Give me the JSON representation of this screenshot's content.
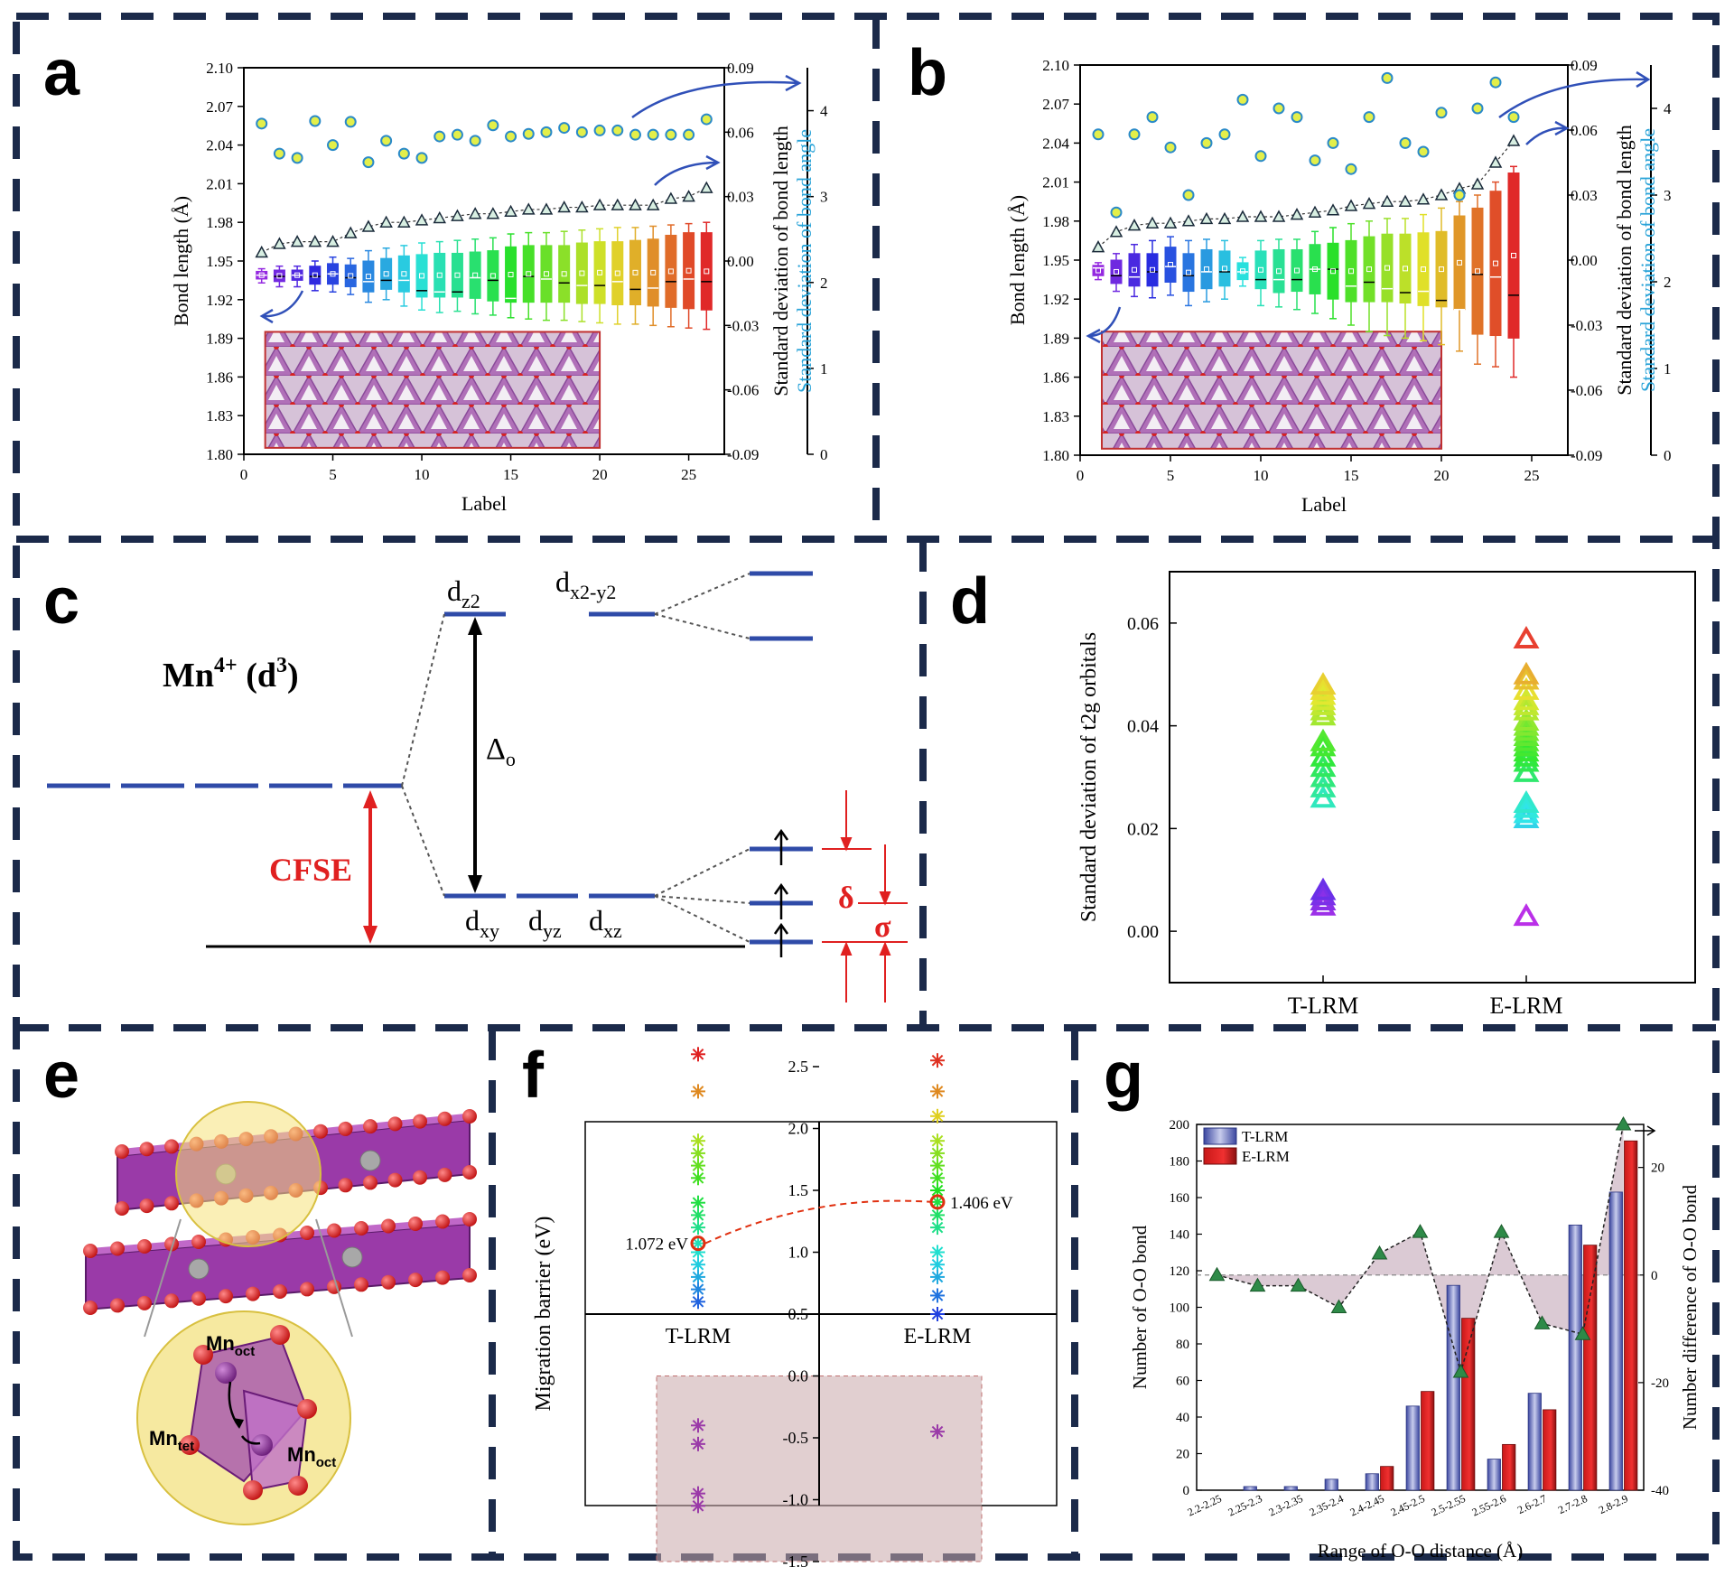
{
  "panel_labels": {
    "a": "a",
    "b": "b",
    "c": "c",
    "d": "d",
    "e": "e",
    "f": "f",
    "g": "g"
  },
  "colors": {
    "frame": "#1b2a4a",
    "blue_line": "#2f4ba8",
    "cfse_red": "#e02020",
    "angle_axis": "#29a3d8"
  },
  "panels_ab": {
    "xlabel": "Label",
    "ylabel_left": "Bond length (Å)",
    "ylabel_right1": "Standard deviation of bond length",
    "ylabel_right2": "Standard deviation of bond angle",
    "left_ticks": [
      "2.10",
      "2.07",
      "2.04",
      "2.01",
      "1.98",
      "1.95",
      "1.92",
      "1.89",
      "1.86",
      "1.83",
      "1.80"
    ],
    "right1_ticks": [
      "0.09",
      "0.06",
      "0.03",
      "0.00",
      "-0.03",
      "-0.06",
      "-0.09"
    ],
    "right2_ticks": [
      "4",
      "3",
      "2",
      "1",
      "0"
    ],
    "x_ticks": [
      "0",
      "5",
      "10",
      "15",
      "20",
      "25"
    ]
  },
  "chart_data": [
    {
      "id": "a",
      "type": "scatter",
      "title": "",
      "xlabel": "Label",
      "ylabel": "Bond length (Å)",
      "xlim": [
        0,
        27
      ],
      "ylim": [
        1.8,
        2.1
      ],
      "series": [
        {
          "name": "Std. dev. of bond angle (circles)",
          "axis": "right2",
          "ylim": [
            0,
            4.5
          ],
          "x": [
            1,
            2,
            3,
            4,
            5,
            6,
            7,
            8,
            9,
            10,
            11,
            12,
            13,
            14,
            15,
            16,
            17,
            18,
            19,
            20,
            21,
            22,
            23,
            24,
            25,
            26
          ],
          "values": [
            3.85,
            3.5,
            3.45,
            3.88,
            3.6,
            3.87,
            3.4,
            3.65,
            3.5,
            3.45,
            3.7,
            3.72,
            3.65,
            3.83,
            3.7,
            3.73,
            3.75,
            3.8,
            3.75,
            3.77,
            3.77,
            3.72,
            3.72,
            3.72,
            3.72,
            3.9
          ]
        },
        {
          "name": "Std. dev. of bond length (triangles)",
          "axis": "right1",
          "ylim": [
            -0.09,
            0.09
          ],
          "x": [
            1,
            2,
            3,
            4,
            5,
            6,
            7,
            8,
            9,
            10,
            11,
            12,
            13,
            14,
            15,
            16,
            17,
            18,
            19,
            20,
            21,
            22,
            23,
            24,
            25,
            26
          ],
          "values": [
            0.004,
            0.008,
            0.009,
            0.009,
            0.009,
            0.013,
            0.016,
            0.018,
            0.018,
            0.019,
            0.02,
            0.021,
            0.022,
            0.022,
            0.023,
            0.024,
            0.024,
            0.025,
            0.025,
            0.026,
            0.026,
            0.026,
            0.026,
            0.029,
            0.03,
            0.034
          ]
        },
        {
          "name": "Bond length boxes",
          "axis": "left",
          "type": "box",
          "x": [
            1,
            2,
            3,
            4,
            5,
            6,
            7,
            8,
            9,
            10,
            11,
            12,
            13,
            14,
            15,
            16,
            17,
            18,
            19,
            20,
            21,
            22,
            23,
            24,
            25,
            26
          ],
          "q1": [
            1.936,
            1.934,
            1.935,
            1.932,
            1.932,
            1.93,
            1.926,
            1.928,
            1.926,
            1.922,
            1.922,
            1.922,
            1.921,
            1.919,
            1.918,
            1.918,
            1.918,
            1.918,
            1.917,
            1.917,
            1.916,
            1.916,
            1.915,
            1.914,
            1.913,
            1.912
          ],
          "q3": [
            1.942,
            1.943,
            1.943,
            1.946,
            1.948,
            1.947,
            1.95,
            1.952,
            1.954,
            1.955,
            1.956,
            1.956,
            1.957,
            1.958,
            1.961,
            1.962,
            1.962,
            1.962,
            1.964,
            1.965,
            1.965,
            1.966,
            1.967,
            1.97,
            1.972,
            1.972
          ],
          "lo": [
            1.933,
            1.93,
            1.93,
            1.927,
            1.926,
            1.924,
            1.918,
            1.92,
            1.915,
            1.912,
            1.91,
            1.911,
            1.909,
            1.908,
            1.906,
            1.905,
            1.904,
            1.904,
            1.903,
            1.902,
            1.901,
            1.901,
            1.9,
            1.899,
            1.898,
            1.897
          ],
          "hi": [
            1.944,
            1.946,
            1.946,
            1.95,
            1.953,
            1.952,
            1.958,
            1.96,
            1.962,
            1.964,
            1.965,
            1.966,
            1.967,
            1.968,
            1.971,
            1.972,
            1.972,
            1.973,
            1.974,
            1.975,
            1.976,
            1.976,
            1.977,
            1.978,
            1.979,
            1.98
          ],
          "median": [
            1.939,
            1.938,
            1.939,
            1.938,
            1.94,
            1.937,
            1.934,
            1.935,
            1.935,
            1.927,
            1.926,
            1.926,
            1.937,
            1.935,
            1.921,
            1.938,
            1.936,
            1.933,
            1.931,
            1.931,
            1.934,
            1.928,
            1.929,
            1.934,
            1.936,
            1.934
          ]
        }
      ]
    },
    {
      "id": "b",
      "type": "scatter",
      "title": "",
      "xlabel": "Label",
      "ylabel": "Bond length (Å)",
      "xlim": [
        0,
        27
      ],
      "ylim": [
        1.8,
        2.1
      ],
      "series": [
        {
          "name": "Std. dev. of bond angle (circles)",
          "axis": "right2",
          "ylim": [
            0,
            4.5
          ],
          "x": [
            1,
            2,
            3,
            4,
            5,
            6,
            7,
            8,
            9,
            10,
            11,
            12,
            13,
            14,
            15,
            16,
            17,
            18,
            19,
            20,
            21,
            22,
            23,
            24
          ],
          "values": [
            3.7,
            2.8,
            3.7,
            3.9,
            3.55,
            3.0,
            3.6,
            3.7,
            4.1,
            3.45,
            4.0,
            3.9,
            3.4,
            3.6,
            3.3,
            3.9,
            4.35,
            3.6,
            3.5,
            3.95,
            3.0,
            4.0,
            4.3,
            3.9
          ]
        },
        {
          "name": "Std. dev. of bond length (triangles)",
          "axis": "right1",
          "ylim": [
            -0.09,
            0.09
          ],
          "x": [
            1,
            2,
            3,
            4,
            5,
            6,
            7,
            8,
            9,
            10,
            11,
            12,
            13,
            14,
            15,
            16,
            17,
            18,
            19,
            20,
            21,
            22,
            23,
            24
          ],
          "values": [
            0.006,
            0.013,
            0.016,
            0.017,
            0.017,
            0.018,
            0.019,
            0.019,
            0.02,
            0.02,
            0.02,
            0.021,
            0.022,
            0.023,
            0.025,
            0.026,
            0.027,
            0.027,
            0.028,
            0.03,
            0.033,
            0.035,
            0.045,
            0.055
          ]
        },
        {
          "name": "Bond length boxes",
          "axis": "left",
          "type": "box",
          "x": [
            1,
            2,
            3,
            4,
            5,
            6,
            7,
            8,
            9,
            10,
            11,
            12,
            13,
            14,
            15,
            16,
            17,
            18,
            19,
            20,
            21,
            22,
            23,
            24
          ],
          "q1": [
            1.938,
            1.932,
            1.93,
            1.93,
            1.933,
            1.926,
            1.928,
            1.93,
            1.935,
            1.928,
            1.925,
            1.926,
            1.924,
            1.92,
            1.918,
            1.918,
            1.918,
            1.917,
            1.915,
            1.914,
            1.912,
            1.893,
            1.892,
            1.89
          ],
          "q3": [
            1.946,
            1.95,
            1.955,
            1.955,
            1.96,
            1.955,
            1.958,
            1.957,
            1.948,
            1.957,
            1.958,
            1.958,
            1.962,
            1.963,
            1.965,
            1.968,
            1.97,
            1.97,
            1.971,
            1.972,
            1.984,
            1.99,
            2.003,
            2.017
          ],
          "lo": [
            1.935,
            1.926,
            1.922,
            1.921,
            1.923,
            1.915,
            1.918,
            1.92,
            1.93,
            1.915,
            1.914,
            1.912,
            1.909,
            1.905,
            1.9,
            1.895,
            1.892,
            1.89,
            1.888,
            1.885,
            1.88,
            1.87,
            1.868,
            1.86
          ],
          "hi": [
            1.948,
            1.955,
            1.962,
            1.965,
            1.968,
            1.965,
            1.966,
            1.965,
            1.952,
            1.965,
            1.966,
            1.966,
            1.972,
            1.975,
            1.978,
            1.98,
            1.982,
            1.982,
            1.985,
            1.99,
            1.995,
            2.0,
            2.01,
            2.022
          ],
          "median": [
            1.944,
            1.938,
            1.937,
            1.941,
            1.945,
            1.938,
            1.941,
            1.941,
            1.941,
            1.935,
            1.935,
            1.935,
            1.943,
            1.943,
            1.93,
            1.933,
            1.928,
            1.925,
            1.926,
            1.919,
            1.912,
            1.939,
            1.937,
            1.923
          ]
        }
      ]
    },
    {
      "id": "d",
      "type": "scatter",
      "title": "",
      "xlabel": "",
      "ylabel": "Standard deviation of t2g orbitals",
      "categories": [
        "T-LRM",
        "E-LRM"
      ],
      "ylim": [
        -0.01,
        0.07
      ],
      "y_ticks": [
        "0.00",
        "0.02",
        "0.04",
        "0.06"
      ],
      "series": [
        {
          "name": "T-LRM",
          "values": [
            0.005,
            0.006,
            0.007,
            0.008,
            0.026,
            0.028,
            0.03,
            0.032,
            0.034,
            0.036,
            0.037,
            0.042,
            0.043,
            0.044,
            0.045,
            0.046,
            0.047,
            0.048
          ]
        },
        {
          "name": "E-LRM",
          "values": [
            0.003,
            0.022,
            0.023,
            0.024,
            0.025,
            0.031,
            0.033,
            0.034,
            0.035,
            0.036,
            0.037,
            0.038,
            0.039,
            0.04,
            0.041,
            0.043,
            0.044,
            0.045,
            0.047,
            0.049,
            0.05,
            0.057
          ]
        }
      ]
    },
    {
      "id": "f",
      "type": "scatter",
      "title": "",
      "ylabel": "Migration barrier (eV)",
      "categories": [
        "T-LRM",
        "E-LRM"
      ],
      "ylim": [
        -1.5,
        2.5
      ],
      "y_ticks": [
        "2.5",
        "2.0",
        "1.5",
        "1.0",
        "0.5",
        "0.0",
        "-0.5",
        "-1.0",
        "-1.5"
      ],
      "annotations": [
        "1.072 eV",
        "1.406 eV"
      ],
      "series": [
        {
          "name": "T-LRM",
          "values": [
            2.6,
            2.3,
            1.9,
            1.8,
            1.7,
            1.6,
            1.4,
            1.3,
            1.2,
            1.072,
            1.0,
            0.9,
            0.8,
            0.7,
            0.6,
            -0.4,
            -0.55,
            -0.95,
            -1.05
          ],
          "highlight": 1.072
        },
        {
          "name": "E-LRM",
          "values": [
            2.55,
            2.3,
            2.1,
            1.9,
            1.8,
            1.7,
            1.6,
            1.5,
            1.406,
            1.3,
            1.2,
            1.0,
            0.9,
            0.8,
            0.65,
            0.5,
            -0.45
          ],
          "highlight": 1.406
        }
      ]
    },
    {
      "id": "g",
      "type": "bar",
      "title": "",
      "xlabel": "Range of O-O distance (Å)",
      "ylabel": "Number of O-O bond",
      "ylabel_right": "Number difference of O-O bond",
      "categories": [
        "2.2-2.25",
        "2.25-2.3",
        "2.3-2.35",
        "2.35-2.4",
        "2.4-2.45",
        "2.45-2.5",
        "2.5-2.55",
        "2.55-2.6",
        "2.6-2.7",
        "2.7-2.8",
        "2.8-2.9"
      ],
      "ylim": [
        0,
        200
      ],
      "ylim_right": [
        -40,
        28
      ],
      "y_ticks": [
        "0",
        "20",
        "40",
        "60",
        "80",
        "100",
        "120",
        "140",
        "160",
        "180",
        "200"
      ],
      "y_ticks_right": [
        "-40",
        "-20",
        "0",
        "20"
      ],
      "series": [
        {
          "name": "T-LRM",
          "values": [
            0,
            2,
            2,
            6,
            9,
            46,
            112,
            17,
            53,
            145,
            163
          ]
        },
        {
          "name": "E-LRM",
          "values": [
            0,
            0,
            0,
            0,
            13,
            54,
            94,
            25,
            44,
            134,
            191
          ]
        },
        {
          "name": "Number difference",
          "axis": "right",
          "values": [
            0,
            -2,
            -2,
            -6,
            4,
            8,
            -18,
            8,
            -9,
            -11,
            28
          ]
        }
      ]
    }
  ],
  "panel_c": {
    "ion_label": "Mn",
    "ion_sup": "4+",
    "config_label": " (d",
    "config_sup": "3",
    "config_close": ")",
    "dz2": "d",
    "dz2_sub": "z2",
    "dx2y2": "d",
    "dx2y2_sub": "x2-y2",
    "delta_o": "Δ",
    "delta_o_sub": "o",
    "cfse": "CFSE",
    "dxy": "d",
    "dxy_sub": "xy",
    "dyz": "d",
    "dyz_sub": "yz",
    "dxz": "d",
    "dxz_sub": "xz",
    "delta": "δ",
    "sigma": "σ"
  },
  "panel_e": {
    "mn_oct_top": "Mn",
    "mn_oct_top_sub": "oct",
    "mn_tet": "Mn",
    "mn_tet_sub": "tet",
    "mn_oct_right": "Mn",
    "mn_oct_right_sub": "oct"
  },
  "legend_g": [
    "T-LRM",
    "E-LRM"
  ]
}
